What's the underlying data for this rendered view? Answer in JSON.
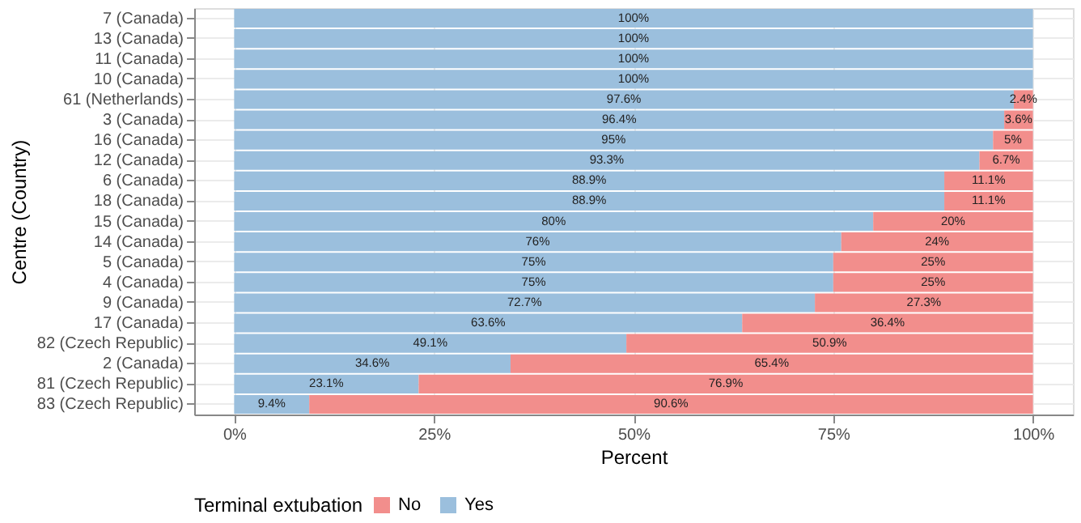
{
  "chart_data": {
    "type": "bar",
    "orientation": "horizontal",
    "stacked": true,
    "xlabel": "Percent",
    "ylabel": "Centre (Country)",
    "legend_title": "Terminal extubation",
    "legend": "bottom",
    "grid": true,
    "categories": [
      "7 (Canada)",
      "13 (Canada)",
      "11 (Canada)",
      "10 (Canada)",
      "61 (Netherlands)",
      "3 (Canada)",
      "16 (Canada)",
      "12 (Canada)",
      "6 (Canada)",
      "18 (Canada)",
      "15 (Canada)",
      "14 (Canada)",
      "5 (Canada)",
      "4 (Canada)",
      "9 (Canada)",
      "17 (Canada)",
      "82 (Czech Republic)",
      "2 (Canada)",
      "81 (Czech Republic)",
      "83 (Czech Republic)"
    ],
    "xlim": [
      -5,
      105
    ],
    "xticks": [
      {
        "value": 0,
        "label": "0%"
      },
      {
        "value": 25,
        "label": "25%"
      },
      {
        "value": 50,
        "label": "50%"
      },
      {
        "value": 75,
        "label": "75%"
      },
      {
        "value": 100,
        "label": "100%"
      }
    ],
    "series": [
      {
        "name": "Yes",
        "color": "#9bbfdd",
        "values": [
          100,
          100,
          100,
          100,
          97.6,
          96.4,
          95,
          93.3,
          88.9,
          88.9,
          80,
          76,
          75,
          75,
          72.7,
          63.6,
          49.1,
          34.6,
          23.1,
          9.4
        ],
        "value_labels": [
          "100%",
          "100%",
          "100%",
          "100%",
          "97.6%",
          "96.4%",
          "95%",
          "93.3%",
          "88.9%",
          "88.9%",
          "80%",
          "76%",
          "75%",
          "75%",
          "72.7%",
          "63.6%",
          "49.1%",
          "34.6%",
          "23.1%",
          "9.4%"
        ]
      },
      {
        "name": "No",
        "color": "#f28e8c",
        "values": [
          0,
          0,
          0,
          0,
          2.4,
          3.6,
          5,
          6.7,
          11.1,
          11.1,
          20,
          24,
          25,
          25,
          27.3,
          36.4,
          50.9,
          65.4,
          76.9,
          90.6
        ],
        "value_labels": [
          null,
          null,
          null,
          null,
          "2.4%",
          "3.6%",
          "5%",
          "6.7%",
          "11.1%",
          "11.1%",
          "20%",
          "24%",
          "25%",
          "25%",
          "27.3%",
          "36.4%",
          "50.9%",
          "65.4%",
          "76.9%",
          "90.6%"
        ]
      }
    ]
  }
}
